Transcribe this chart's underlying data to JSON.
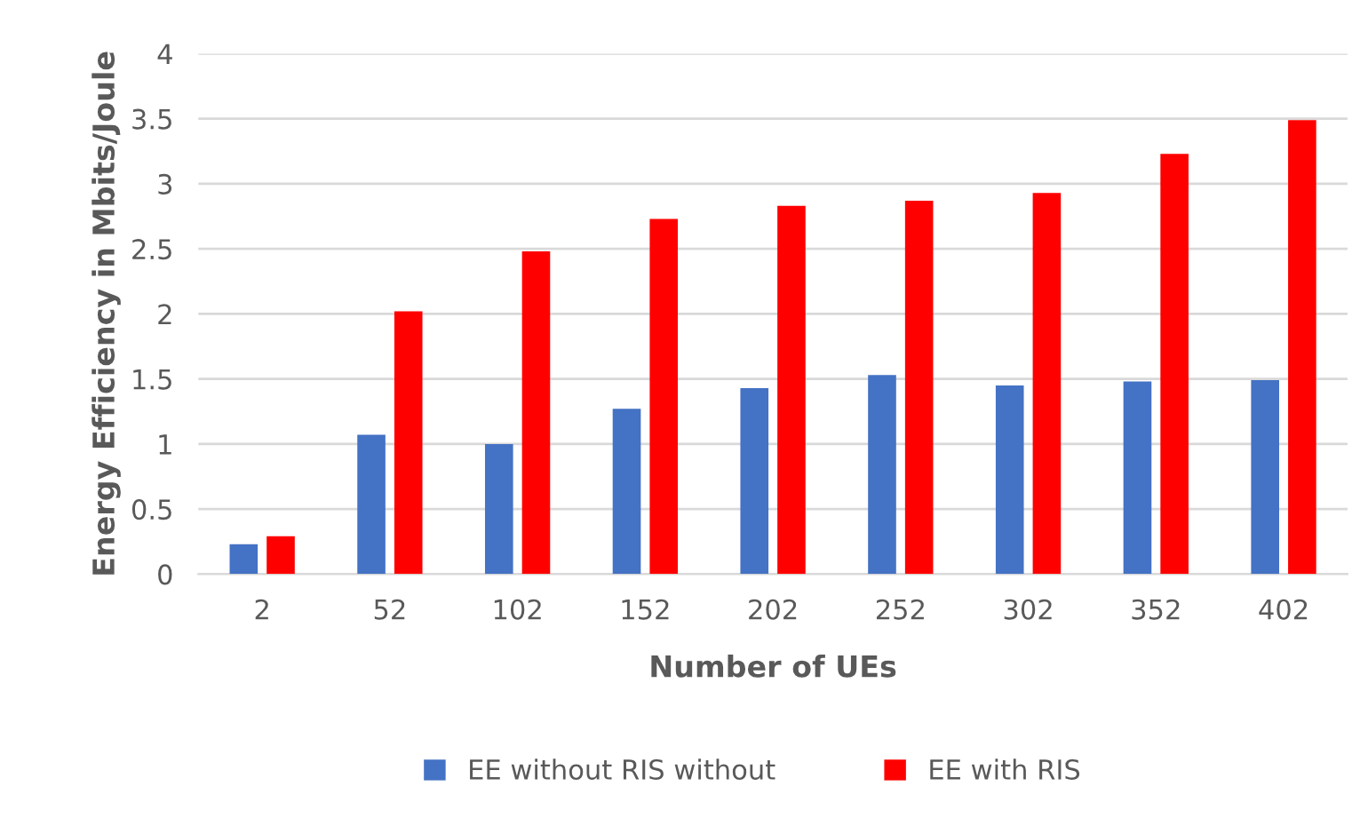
{
  "chart_data": {
    "type": "bar",
    "xlabel": "Number of UEs",
    "ylabel": "Energy Efficiency in Mbits/Joule",
    "categories": [
      "2",
      "52",
      "102",
      "152",
      "202",
      "252",
      "302",
      "352",
      "402"
    ],
    "series": [
      {
        "name": "EE without RIS without",
        "color": "#4472c4",
        "values": [
          0.23,
          1.07,
          1.0,
          1.27,
          1.43,
          1.53,
          1.45,
          1.48,
          1.49
        ]
      },
      {
        "name": "EE with RIS",
        "color": "#ff0000",
        "values": [
          0.29,
          2.02,
          2.48,
          2.73,
          2.83,
          2.87,
          2.93,
          3.23,
          3.49
        ]
      }
    ],
    "ylim": [
      0,
      4
    ],
    "yticks": [
      0,
      0.5,
      1,
      1.5,
      2,
      2.5,
      3,
      3.5,
      4
    ],
    "grid": "y",
    "legend": "bottom"
  }
}
